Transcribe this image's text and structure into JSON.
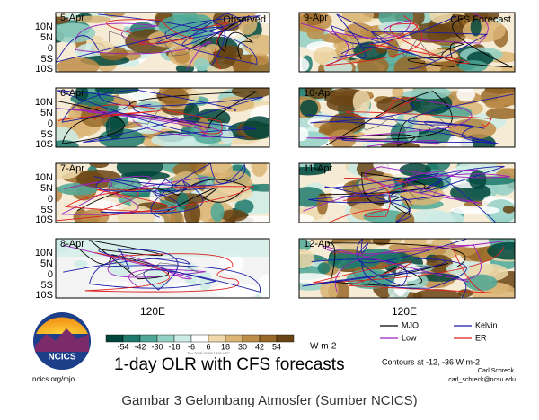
{
  "panels": [
    {
      "date": "5-Apr",
      "label": "Observed"
    },
    {
      "date": "6-Apr"
    },
    {
      "date": "7-Apr"
    },
    {
      "date": "8-Apr"
    },
    {
      "date": "9-Apr",
      "label": "CFS Forecast"
    },
    {
      "date": "10-Apr"
    },
    {
      "date": "11-Apr"
    },
    {
      "date": "12-Apr"
    }
  ],
  "lat_labels": [
    "10N",
    "5N",
    "0",
    "5S",
    "10S"
  ],
  "lon_label": "120E",
  "colorbar": {
    "ticks": [
      -54,
      -42,
      -30,
      -18,
      -6,
      6,
      18,
      30,
      42,
      54
    ],
    "unit": "W m-2"
  },
  "title": "1-day OLR with CFS forecasts",
  "legend": [
    {
      "name": "MJO",
      "color": "#000000"
    },
    {
      "name": "Kelvin",
      "color": "#1a1aa8"
    },
    {
      "name": "Low",
      "color": "#a020c0"
    },
    {
      "name": "ER",
      "color": "#e02020"
    }
  ],
  "contour_note": "Contours at -12, -36 W m-2",
  "author": "Carl Schreck",
  "email": "carl_schreck@ncsu.edu",
  "logo": "NCICS",
  "url": "ncics.org/mjo",
  "timestamp": "Thu 2025-04-09 1815 UTC",
  "caption": "Gambar 3 Gelombang Atmosfer (Sumber NCICS)"
}
